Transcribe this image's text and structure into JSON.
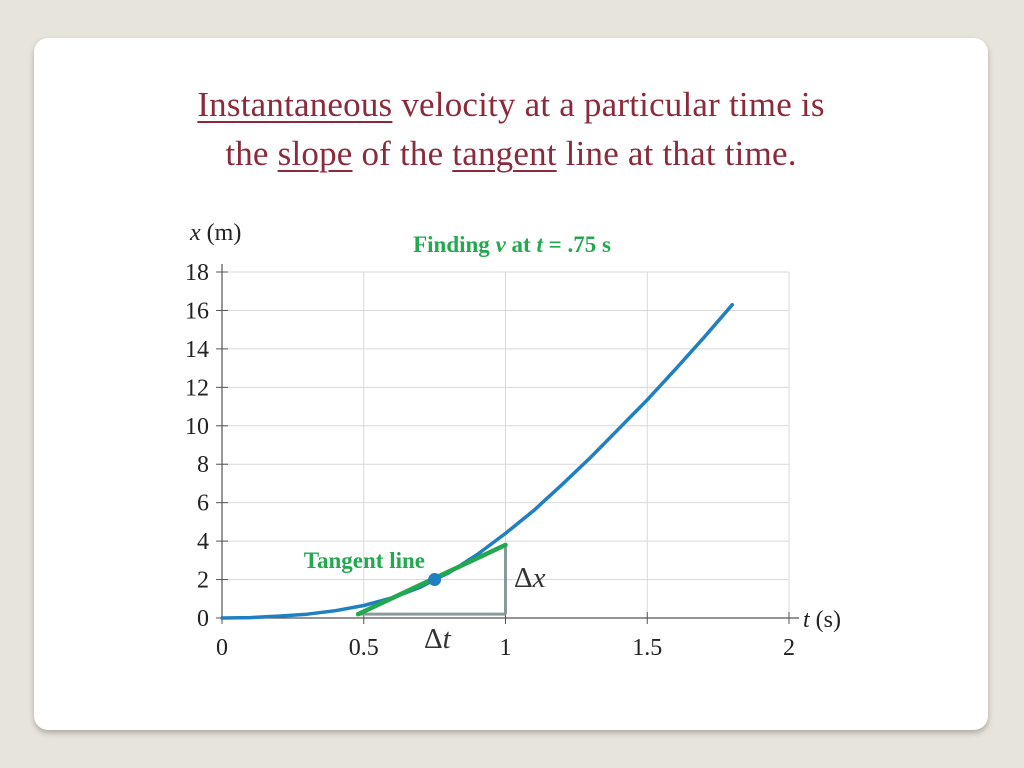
{
  "slide": {
    "title_line1": [
      {
        "text": "Instantaneous",
        "underline": true
      },
      {
        "text": " velocity at a particular time is",
        "underline": false
      }
    ],
    "title_line2": [
      {
        "text": "the ",
        "underline": false
      },
      {
        "text": "slope",
        "underline": true
      },
      {
        "text": " of the ",
        "underline": false
      },
      {
        "text": "tangent",
        "underline": true
      },
      {
        "text": " line at that time.",
        "underline": false
      }
    ]
  },
  "chart_data": {
    "type": "line",
    "title_parts": [
      {
        "text": "Finding ",
        "italic": false
      },
      {
        "text": "v",
        "italic": true
      },
      {
        "text": " at ",
        "italic": false
      },
      {
        "text": "t",
        "italic": true
      },
      {
        "text": " = .75 s",
        "italic": false
      }
    ],
    "xlabel_var": "t",
    "xlabel_unit": " (s)",
    "ylabel_var": "x",
    "ylabel_unit": " (m)",
    "xlim": [
      0,
      2
    ],
    "ylim": [
      0,
      18
    ],
    "xticks": [
      0,
      0.5,
      1,
      1.5,
      2
    ],
    "xtick_labels": [
      "0",
      "0.5",
      "1",
      "1.5",
      "2"
    ],
    "yticks": [
      0,
      2,
      4,
      6,
      8,
      10,
      12,
      14,
      16,
      18
    ],
    "ytick_labels": [
      "0",
      "2",
      "4",
      "6",
      "8",
      "10",
      "12",
      "14",
      "16",
      "18"
    ],
    "grid": true,
    "series": [
      {
        "color": "#1f7fc0",
        "x": [
          0,
          0.1,
          0.2,
          0.3,
          0.4,
          0.5,
          0.6,
          0.7,
          0.75,
          0.8,
          0.9,
          1.0,
          1.1,
          1.2,
          1.3,
          1.4,
          1.5,
          1.6,
          1.7,
          1.8
        ],
        "y": [
          0,
          0.02,
          0.1,
          0.2,
          0.38,
          0.65,
          1.05,
          1.6,
          2.0,
          2.35,
          3.3,
          4.4,
          5.6,
          6.95,
          8.35,
          9.85,
          11.35,
          12.95,
          14.6,
          16.3
        ]
      }
    ],
    "tangent": {
      "color": "#22a94f",
      "x": [
        0.48,
        1.0
      ],
      "y": [
        0.2,
        3.8
      ],
      "label": "Tangent line"
    },
    "point": {
      "x": 0.75,
      "y": 2.0,
      "color": "#1f7fc0"
    },
    "slope_triangle": {
      "color": "#8a9a9a",
      "x0": 0.48,
      "x1": 1.0,
      "y0": 0.2,
      "y1": 3.8,
      "dx_label": "Δx",
      "dt_label": "Δt"
    }
  }
}
